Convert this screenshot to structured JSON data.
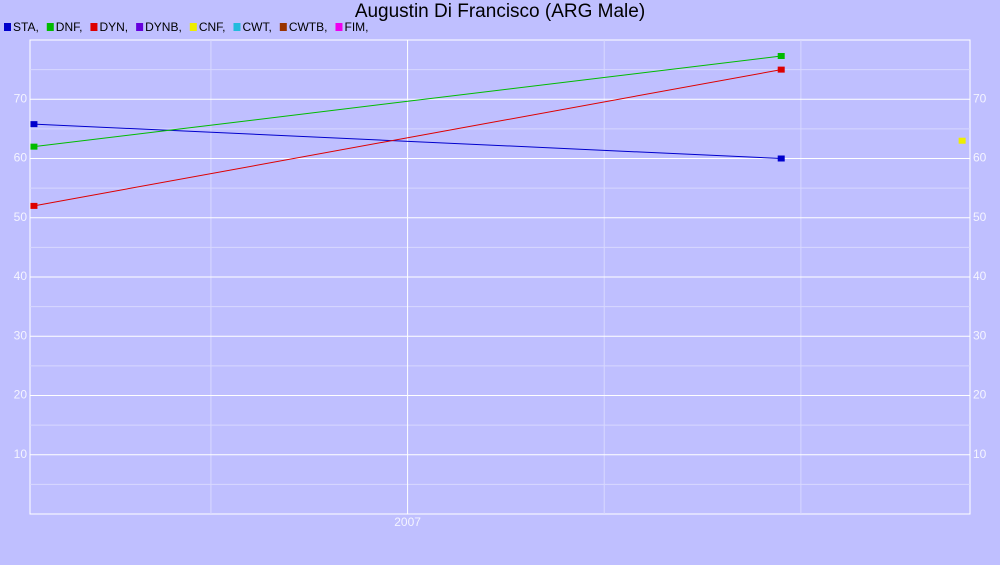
{
  "chart_data": {
    "type": "line",
    "title": "Augustin Di Francisco (ARG Male)",
    "x": [
      2006.05,
      2007.95,
      2008.41
    ],
    "series": [
      {
        "name": "STA,",
        "color": "#0000cc",
        "values": [
          65.8,
          60,
          null
        ]
      },
      {
        "name": "DNF,",
        "color": "#00bb00",
        "values": [
          62,
          77.3,
          null
        ]
      },
      {
        "name": "DYN,",
        "color": "#dd0000",
        "values": [
          52,
          75,
          null
        ]
      },
      {
        "name": "DYNB,",
        "color": "#6600dd",
        "values": [
          null,
          null,
          null
        ]
      },
      {
        "name": "CNF,",
        "color": "#eeee00",
        "values": [
          null,
          null,
          63
        ]
      },
      {
        "name": "CWT,",
        "color": "#22bbdd",
        "values": [
          null,
          null,
          null
        ]
      },
      {
        "name": "CWTB,",
        "color": "#993300",
        "values": [
          null,
          null,
          null
        ]
      },
      {
        "name": "FIM,",
        "color": "#ee00ee",
        "values": [
          null,
          null,
          null
        ]
      }
    ],
    "xlim": [
      2006.04,
      2008.43
    ],
    "xticks": [
      2007
    ],
    "xminor": [
      2006.5,
      2007.5,
      2008
    ],
    "ylim": [
      0,
      80
    ],
    "yticks": [
      10,
      20,
      30,
      40,
      50,
      60,
      70
    ],
    "yminor": [
      5,
      15,
      25,
      35,
      45,
      55,
      65,
      75
    ],
    "grid": true,
    "legend": "top-left"
  }
}
